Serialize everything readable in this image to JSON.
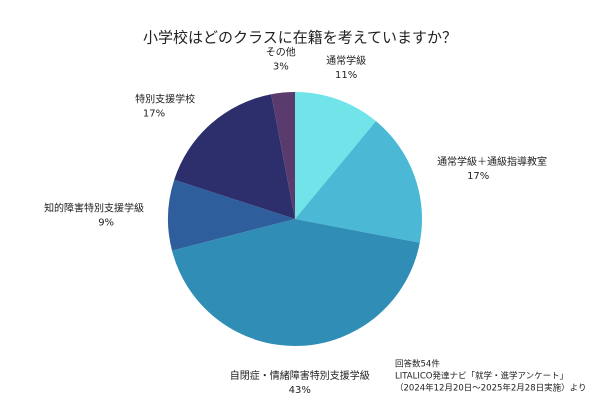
{
  "chart_data": {
    "type": "pie",
    "title": "小学校はどのクラスに在籍を考えていますか？",
    "categories": [
      "通常学級",
      "通常学級＋通級指導教室",
      "自閉症・情緒障害特別支援学級",
      "知的障害特別支援学級",
      "特別支援学校",
      "その他"
    ],
    "values": [
      11,
      17,
      43,
      9,
      17,
      3
    ],
    "value_labels": [
      "11%",
      "17%",
      "43%",
      "9%",
      "17%",
      "3%"
    ],
    "colors": [
      "#70e4e8",
      "#4bb9d6",
      "#2f8db6",
      "#2e5f9c",
      "#2c2f6c",
      "#5b3b6d"
    ],
    "note": [
      "回答数54件",
      "LITALICO発達ナビ「就学・進学アンケート」",
      "（2024年12月20日～2025年2月28日実施）より"
    ]
  }
}
